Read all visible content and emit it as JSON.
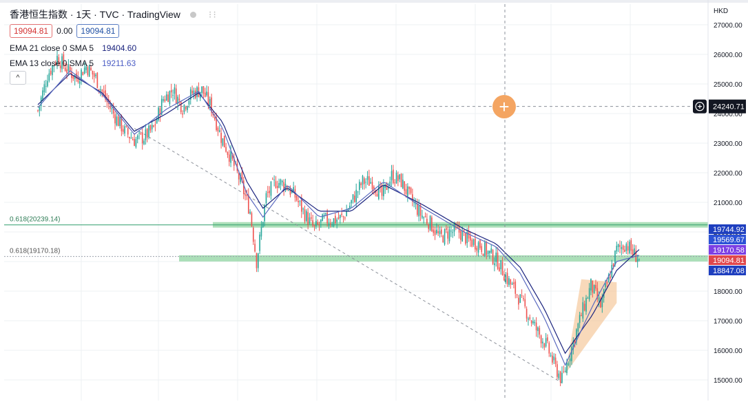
{
  "title": "香港恒生指数 · 1天 · TVC · TradingView",
  "legend": {
    "bid": "19094.81",
    "spread": "0.00",
    "ask": "19094.81",
    "indicators": [
      {
        "label": "EMA 21 close 0 SMA 5",
        "value": "19404.60"
      },
      {
        "label": "EMA 13 close 0 SMA 5",
        "value": "19211.63"
      }
    ]
  },
  "currency": "HKD",
  "crosshair_price": "24240.71",
  "fib_levels": [
    {
      "label": "0.618(20239.14)",
      "price": 20239.14,
      "color": "#2f9e6b"
    },
    {
      "label": "0.618(19170.18)",
      "price": 19170.18,
      "color": "#9aa0aa"
    }
  ],
  "price_tags": [
    {
      "value": "19744.92",
      "bg": "#1e3fbf"
    },
    {
      "value": "19569.67",
      "bg": "#2c52d6"
    },
    {
      "value": "19170.58",
      "bg": "#7b3fe4"
    },
    {
      "value": "19094.81",
      "bg": "#e0474c"
    },
    {
      "value": "18847.08",
      "bg": "#1e3fbf"
    }
  ],
  "colors": {
    "up": "#26a69a",
    "down": "#ef5350",
    "ema21": "#1a237e",
    "ema13": "#5c6bc0",
    "support_zone": "#8fd4a0",
    "wedge": "#f3c08c",
    "grid": "#eef0f3"
  },
  "chart_data": {
    "type": "candlestick",
    "ylim": [
      14700,
      27200
    ],
    "yticks": [
      15000,
      16000,
      17000,
      18000,
      19000,
      20000,
      21000,
      22000,
      23000,
      24000,
      25000,
      26000,
      27000
    ],
    "ytick_labels": [
      "15000.00",
      "16000.00",
      "17000.00",
      "18000.00",
      "19000.00",
      "20000.00",
      "21000.00",
      "22000.00",
      "23000.00",
      "24000.00",
      "25000.00",
      "26000.00",
      "27000.00"
    ],
    "last_price": 19094.81,
    "series": [
      {
        "name": "price",
        "close_path": [
          [
            0,
            24100
          ],
          [
            6,
            25300
          ],
          [
            12,
            25900
          ],
          [
            18,
            25500
          ],
          [
            24,
            25200
          ],
          [
            30,
            25600
          ],
          [
            36,
            25200
          ],
          [
            42,
            24500
          ],
          [
            48,
            23900
          ],
          [
            54,
            23400
          ],
          [
            60,
            23100
          ],
          [
            66,
            23200
          ],
          [
            72,
            23500
          ],
          [
            78,
            24500
          ],
          [
            84,
            24800
          ],
          [
            90,
            24200
          ],
          [
            96,
            24700
          ],
          [
            102,
            24800
          ],
          [
            108,
            24200
          ],
          [
            114,
            23200
          ],
          [
            120,
            22500
          ],
          [
            126,
            21700
          ],
          [
            132,
            20700
          ],
          [
            136,
            19000
          ],
          [
            142,
            21200
          ],
          [
            148,
            21700
          ],
          [
            154,
            21600
          ],
          [
            160,
            21200
          ],
          [
            166,
            20600
          ],
          [
            172,
            20100
          ],
          [
            178,
            20400
          ],
          [
            184,
            20400
          ],
          [
            190,
            20500
          ],
          [
            196,
            21100
          ],
          [
            202,
            21700
          ],
          [
            208,
            21700
          ],
          [
            214,
            21200
          ],
          [
            220,
            21900
          ],
          [
            226,
            21700
          ],
          [
            232,
            21100
          ],
          [
            238,
            20600
          ],
          [
            244,
            20300
          ],
          [
            250,
            19800
          ],
          [
            256,
            20000
          ],
          [
            262,
            20000
          ],
          [
            268,
            19700
          ],
          [
            274,
            19600
          ],
          [
            280,
            19300
          ],
          [
            286,
            19000
          ],
          [
            292,
            18400
          ],
          [
            298,
            17900
          ],
          [
            304,
            17300
          ],
          [
            310,
            16700
          ],
          [
            316,
            16200
          ],
          [
            322,
            15400
          ],
          [
            326,
            15000
          ],
          [
            332,
            16100
          ],
          [
            338,
            17200
          ],
          [
            344,
            18200
          ],
          [
            350,
            17500
          ],
          [
            356,
            18600
          ],
          [
            360,
            19400
          ],
          [
            366,
            19600
          ],
          [
            370,
            19300
          ],
          [
            374,
            19094.81
          ]
        ]
      }
    ],
    "ema_21_path": [
      [
        0,
        24300
      ],
      [
        20,
        25350
      ],
      [
        40,
        24700
      ],
      [
        60,
        23400
      ],
      [
        80,
        24000
      ],
      [
        100,
        24700
      ],
      [
        115,
        23700
      ],
      [
        130,
        21700
      ],
      [
        140,
        20800
      ],
      [
        155,
        21500
      ],
      [
        175,
        20700
      ],
      [
        195,
        20700
      ],
      [
        215,
        21600
      ],
      [
        240,
        20900
      ],
      [
        265,
        20100
      ],
      [
        285,
        19600
      ],
      [
        300,
        18800
      ],
      [
        315,
        17400
      ],
      [
        328,
        15900
      ],
      [
        345,
        17200
      ],
      [
        360,
        18700
      ],
      [
        374,
        19404.6
      ]
    ],
    "ema_13_path": [
      [
        0,
        24200
      ],
      [
        20,
        25450
      ],
      [
        40,
        24650
      ],
      [
        60,
        23300
      ],
      [
        80,
        24150
      ],
      [
        100,
        24750
      ],
      [
        115,
        23500
      ],
      [
        130,
        21300
      ],
      [
        140,
        20500
      ],
      [
        155,
        21600
      ],
      [
        175,
        20500
      ],
      [
        195,
        20800
      ],
      [
        215,
        21700
      ],
      [
        240,
        20800
      ],
      [
        265,
        20000
      ],
      [
        285,
        19500
      ],
      [
        300,
        18600
      ],
      [
        315,
        17100
      ],
      [
        328,
        15500
      ],
      [
        345,
        17500
      ],
      [
        360,
        19000
      ],
      [
        374,
        19211.63
      ]
    ],
    "trendline": [
      [
        60,
        23500
      ],
      [
        326,
        14900
      ]
    ],
    "wedge": [
      [
        328,
        15200
      ],
      [
        360,
        17600
      ],
      [
        360,
        18300
      ],
      [
        338,
        18400
      ]
    ]
  }
}
